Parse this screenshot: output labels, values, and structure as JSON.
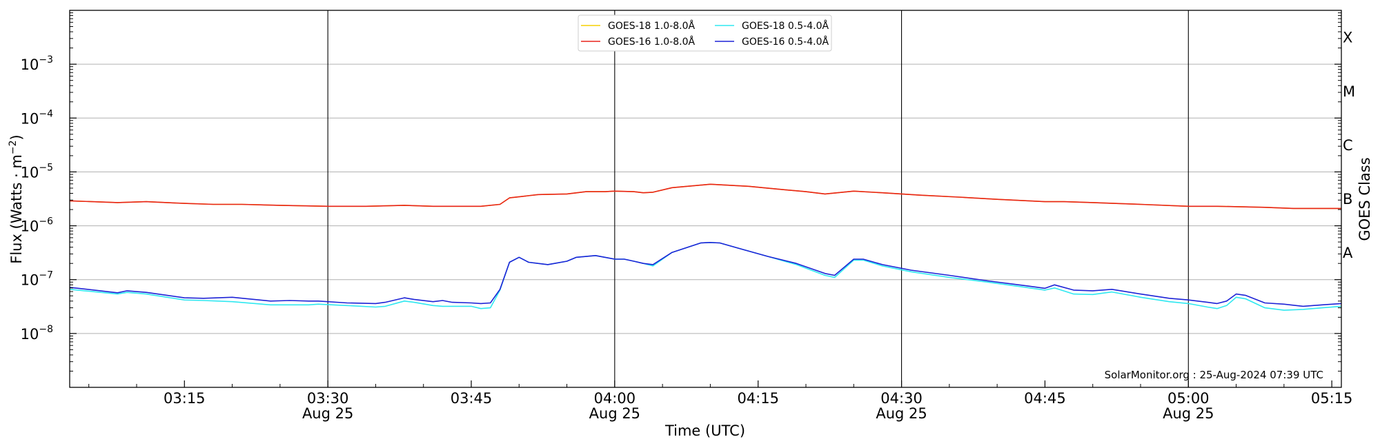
{
  "chart_data": {
    "type": "line",
    "xlabel": "Time (UTC)",
    "ylabel": "Flux (Watts · m",
    "ylabel_sup": "−2",
    "ylabel_close": ")",
    "right_label": "GOES Class",
    "y_scale": "log",
    "ylim": [
      1e-09,
      0.01
    ],
    "xlim_minutes": [
      183,
      316
    ],
    "grid": "horizontal major",
    "legend_position": "top-center",
    "annotation": "SolarMonitor.org : 25-Aug-2024 07:39 UTC",
    "y_ticks": [
      {
        "value": 1e-08,
        "base": "10",
        "exp": "−8"
      },
      {
        "value": 1e-07,
        "base": "10",
        "exp": "−7"
      },
      {
        "value": 1e-06,
        "base": "10",
        "exp": "−6"
      },
      {
        "value": 1e-05,
        "base": "10",
        "exp": "−5"
      },
      {
        "value": 0.0001,
        "base": "10",
        "exp": "−4"
      },
      {
        "value": 0.001,
        "base": "10",
        "exp": "−3"
      }
    ],
    "x_ticks": [
      {
        "minutes": 195,
        "time": "03:15",
        "date": ""
      },
      {
        "minutes": 210,
        "time": "03:30",
        "date": "Aug 25"
      },
      {
        "minutes": 225,
        "time": "03:45",
        "date": ""
      },
      {
        "minutes": 240,
        "time": "04:00",
        "date": "Aug 25"
      },
      {
        "minutes": 255,
        "time": "04:15",
        "date": ""
      },
      {
        "minutes": 270,
        "time": "04:30",
        "date": "Aug 25"
      },
      {
        "minutes": 285,
        "time": "04:45",
        "date": ""
      },
      {
        "minutes": 300,
        "time": "05:00",
        "date": "Aug 25"
      },
      {
        "minutes": 315,
        "time": "05:15",
        "date": ""
      }
    ],
    "vlines_minutes": [
      210,
      240,
      270,
      300
    ],
    "classes": [
      {
        "label": "A",
        "value": 1e-07
      },
      {
        "label": "B",
        "value": 1e-06
      },
      {
        "label": "C",
        "value": 1e-05
      },
      {
        "label": "M",
        "value": 0.0001
      },
      {
        "label": "X",
        "value": 0.001
      }
    ],
    "series": [
      {
        "name": "GOES-18 1.0-8.0Å",
        "color": "#f5d000",
        "x_minutes": [
          183,
          188,
          191,
          195,
          198,
          201,
          205,
          210,
          214,
          218,
          221,
          225,
          226,
          228,
          229,
          232,
          235,
          237,
          239,
          240,
          242,
          243,
          244,
          246,
          250,
          254,
          257,
          260,
          262,
          265,
          268,
          272,
          276,
          280,
          285,
          287,
          290,
          295,
          300,
          303,
          308,
          311,
          316
        ],
        "values": [
          2.9e-06,
          2.7e-06,
          2.8e-06,
          2.6e-06,
          2.5e-06,
          2.5e-06,
          2.4e-06,
          2.3e-06,
          2.3e-06,
          2.4e-06,
          2.3e-06,
          2.3e-06,
          2.3e-06,
          2.5e-06,
          3.3e-06,
          3.8e-06,
          3.9e-06,
          4.3e-06,
          4.3e-06,
          4.4e-06,
          4.3e-06,
          4.1e-06,
          4.2e-06,
          5.1e-06,
          5.9e-06,
          5.4e-06,
          4.8e-06,
          4.3e-06,
          3.9e-06,
          4.4e-06,
          4.1e-06,
          3.7e-06,
          3.4e-06,
          3.1e-06,
          2.8e-06,
          2.8e-06,
          2.7e-06,
          2.5e-06,
          2.3e-06,
          2.3e-06,
          2.2e-06,
          2.1e-06,
          2.1e-06
        ]
      },
      {
        "name": "GOES-16 1.0-8.0Å",
        "color": "#e8231b",
        "x_minutes": [
          183,
          188,
          191,
          195,
          198,
          201,
          205,
          210,
          214,
          218,
          221,
          225,
          226,
          228,
          229,
          232,
          235,
          237,
          239,
          240,
          242,
          243,
          244,
          246,
          250,
          254,
          257,
          260,
          262,
          265,
          268,
          272,
          276,
          280,
          285,
          287,
          290,
          295,
          300,
          303,
          308,
          311,
          316
        ],
        "values": [
          2.9e-06,
          2.7e-06,
          2.8e-06,
          2.6e-06,
          2.5e-06,
          2.5e-06,
          2.4e-06,
          2.3e-06,
          2.3e-06,
          2.4e-06,
          2.3e-06,
          2.3e-06,
          2.3e-06,
          2.5e-06,
          3.3e-06,
          3.8e-06,
          3.9e-06,
          4.3e-06,
          4.3e-06,
          4.4e-06,
          4.3e-06,
          4.1e-06,
          4.2e-06,
          5.1e-06,
          5.9e-06,
          5.4e-06,
          4.8e-06,
          4.3e-06,
          3.9e-06,
          4.4e-06,
          4.1e-06,
          3.7e-06,
          3.4e-06,
          3.1e-06,
          2.8e-06,
          2.8e-06,
          2.7e-06,
          2.5e-06,
          2.3e-06,
          2.3e-06,
          2.2e-06,
          2.1e-06,
          2.1e-06
        ]
      },
      {
        "name": "GOES-18 0.5-4.0Å",
        "color": "#2ee8f0",
        "x_minutes": [
          183,
          188,
          189,
          191,
          195,
          197,
          200,
          204,
          206,
          208,
          209,
          212,
          215,
          216,
          218,
          219,
          221,
          222,
          223,
          225,
          226,
          227,
          228,
          229,
          230,
          231,
          233,
          235,
          236,
          238,
          240,
          241,
          242,
          243,
          244,
          246,
          249,
          250,
          251,
          253,
          256,
          259,
          262,
          263,
          265,
          266,
          268,
          271,
          275,
          279,
          283,
          285,
          286,
          288,
          290,
          292,
          295,
          298,
          300,
          302,
          303,
          304,
          305,
          306,
          308,
          310,
          312,
          314,
          316
        ],
        "values": [
          6.6e-08,
          5.4e-08,
          5.8e-08,
          5.4e-08,
          4.2e-08,
          4.1e-08,
          3.9e-08,
          3.4e-08,
          3.4e-08,
          3.4e-08,
          3.5e-08,
          3.3e-08,
          3.1e-08,
          3.2e-08,
          4e-08,
          3.8e-08,
          3.3e-08,
          3.2e-08,
          3.2e-08,
          3.2e-08,
          2.9e-08,
          3e-08,
          6.4e-08,
          2.1e-07,
          2.6e-07,
          2.1e-07,
          1.9e-07,
          2.2e-07,
          2.6e-07,
          2.8e-07,
          2.4e-07,
          2.4e-07,
          2.2e-07,
          2e-07,
          1.8e-07,
          3.2e-07,
          4.8e-07,
          4.9e-07,
          4.8e-07,
          3.8e-07,
          2.7e-07,
          1.9e-07,
          1.2e-07,
          1.1e-07,
          2.3e-07,
          2.3e-07,
          1.8e-07,
          1.4e-07,
          1.1e-07,
          9e-08,
          7.2e-08,
          6.4e-08,
          7e-08,
          5.4e-08,
          5.3e-08,
          5.9e-08,
          4.7e-08,
          3.9e-08,
          3.6e-08,
          3.1e-08,
          2.9e-08,
          3.3e-08,
          4.7e-08,
          4.4e-08,
          3e-08,
          2.7e-08,
          2.8e-08,
          3e-08,
          3.2e-08
        ]
      },
      {
        "name": "GOES-16 0.5-4.0Å",
        "color": "#1d22d6",
        "x_minutes": [
          183,
          188,
          189,
          191,
          195,
          197,
          200,
          204,
          206,
          208,
          209,
          212,
          215,
          216,
          218,
          219,
          221,
          222,
          223,
          225,
          226,
          227,
          228,
          229,
          230,
          231,
          233,
          235,
          236,
          238,
          240,
          241,
          242,
          243,
          244,
          246,
          249,
          250,
          251,
          253,
          256,
          259,
          262,
          263,
          265,
          266,
          268,
          271,
          275,
          279,
          283,
          285,
          286,
          288,
          290,
          292,
          295,
          298,
          300,
          302,
          303,
          304,
          305,
          306,
          308,
          310,
          312,
          314,
          316
        ],
        "values": [
          7.2e-08,
          5.7e-08,
          6.2e-08,
          5.8e-08,
          4.6e-08,
          4.5e-08,
          4.7e-08,
          4e-08,
          4.1e-08,
          4e-08,
          4e-08,
          3.7e-08,
          3.6e-08,
          3.8e-08,
          4.6e-08,
          4.3e-08,
          3.9e-08,
          4.1e-08,
          3.8e-08,
          3.7e-08,
          3.6e-08,
          3.7e-08,
          6.6e-08,
          2.1e-07,
          2.6e-07,
          2.1e-07,
          1.9e-07,
          2.2e-07,
          2.6e-07,
          2.8e-07,
          2.4e-07,
          2.4e-07,
          2.2e-07,
          2e-07,
          1.9e-07,
          3.2e-07,
          4.8e-07,
          4.9e-07,
          4.8e-07,
          3.8e-07,
          2.7e-07,
          2e-07,
          1.3e-07,
          1.2e-07,
          2.4e-07,
          2.4e-07,
          1.9e-07,
          1.5e-07,
          1.2e-07,
          9.5e-08,
          7.7e-08,
          6.9e-08,
          8e-08,
          6.4e-08,
          6.2e-08,
          6.6e-08,
          5.4e-08,
          4.5e-08,
          4.2e-08,
          3.8e-08,
          3.6e-08,
          4e-08,
          5.4e-08,
          5.1e-08,
          3.7e-08,
          3.5e-08,
          3.2e-08,
          3.4e-08,
          3.6e-08
        ]
      }
    ]
  }
}
